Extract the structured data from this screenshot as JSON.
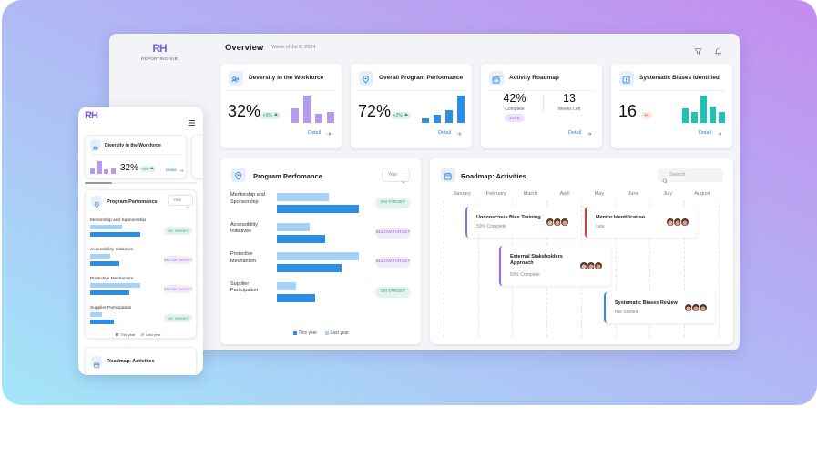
{
  "brand": {
    "logo": "RH",
    "name": "REPORTINGHUB"
  },
  "header": {
    "title": "Overview",
    "week": "Week of Jul 8, 2024"
  },
  "cards": [
    {
      "title": "Deversity in the Workforce",
      "value": "32%",
      "change": "+3%",
      "badge_color": "#2a9d62",
      "action": "Detail",
      "bar_color": "#b69af0",
      "bars": [
        16,
        30,
        10,
        12
      ]
    },
    {
      "title": "Overall Program Performance",
      "value": "72%",
      "change": "+2%",
      "badge_color": "#2a9d62",
      "action": "Detail",
      "bar_color": "#2d8ee6",
      "bars": [
        5,
        9,
        14,
        30
      ]
    },
    {
      "title": "Activity Roadmap",
      "stats": [
        {
          "value": "42%",
          "label": "Complete"
        },
        {
          "value": "13",
          "label": "Weeks Left"
        }
      ],
      "status": "LATE",
      "action": "Detail"
    },
    {
      "title": "Systematic Biases Identified",
      "value": "16",
      "change": "+4",
      "badge_color": "#e0483e",
      "action": "Detail",
      "bar_color": "#1fc2b4",
      "bars": [
        16,
        12,
        30,
        18,
        12
      ]
    }
  ],
  "program": {
    "title": "Program Perfomance",
    "filter": "Year",
    "series": [
      {
        "name": "This year",
        "color": "#2d8ee6"
      },
      {
        "name": "Last year",
        "color": "#a6d2f6"
      }
    ],
    "rows": [
      {
        "label": "Mentorship and Sponsorship",
        "values": [
          100,
          63
        ],
        "status": "ON TARGET",
        "status_color": "#2aa876"
      },
      {
        "label": "Accessibility Initiatives",
        "values": [
          59,
          40
        ],
        "status": "BELOW TARGET",
        "status_color": "#9a6bd8"
      },
      {
        "label": "Protective Mechanism",
        "values": [
          79,
          100
        ],
        "status": "BELOW TARGET",
        "status_color": "#9a6bd8"
      },
      {
        "label": "Supplier Participation",
        "values": [
          47,
          23
        ],
        "status": "ON TARGET",
        "status_color": "#2aa876"
      }
    ]
  },
  "roadmap": {
    "title": "Roadmap: Activities",
    "search": "Search",
    "months": [
      "January",
      "February",
      "March",
      "April",
      "May",
      "June",
      "July",
      "August"
    ],
    "activities": [
      {
        "name": "Unconscious Bias Training",
        "status": "50% Complete",
        "color": "#9a6bd8"
      },
      {
        "name": "Mentor Identification",
        "status": "Late",
        "color": "#d23a3a"
      },
      {
        "name": "External Stakeholders Approach",
        "status": "50% Complete",
        "color": "#9a6bd8"
      },
      {
        "name": "Systematic Biases Review",
        "status": "Not Started",
        "color": "#2d8ee6"
      }
    ]
  },
  "mobile": {
    "card_title": "Diversity in the Workforce"
  }
}
